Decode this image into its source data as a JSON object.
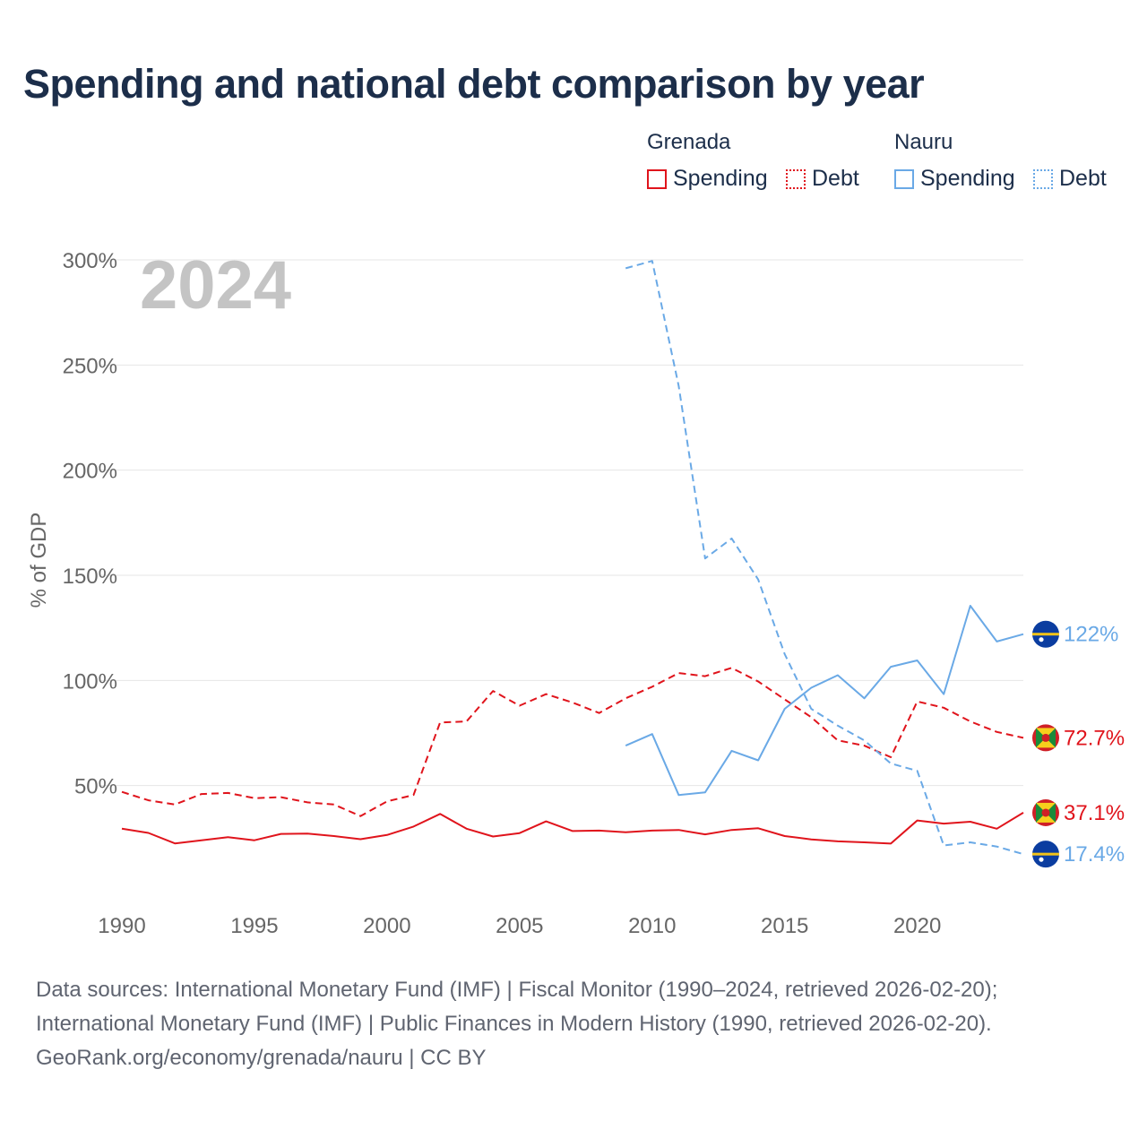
{
  "header": {
    "title": "Spending and national debt comparison by year"
  },
  "legend": {
    "groups": [
      {
        "name": "Grenada",
        "items": [
          "Spending",
          "Debt"
        ]
      },
      {
        "name": "Nauru",
        "items": [
          "Spending",
          "Debt"
        ]
      }
    ]
  },
  "colors": {
    "grenada": "#e0141c",
    "nauru": "#6aa9e6",
    "title": "#1c2e4a",
    "axis_text": "#666666",
    "year_watermark": "#c4c4c4",
    "grid": "#e6e6e6"
  },
  "flags": {
    "grenada": "grenada-flag-icon",
    "nauru": "nauru-flag-icon"
  },
  "chart_data": {
    "type": "line",
    "year_label": "2024",
    "ylabel": "% of GDP",
    "xlim": [
      1990,
      2024
    ],
    "ylim": [
      0,
      300
    ],
    "x_ticks": [
      1990,
      1995,
      2000,
      2005,
      2010,
      2015,
      2020
    ],
    "y_ticks": [
      {
        "value": 50,
        "label": "50%"
      },
      {
        "value": 100,
        "label": "100%"
      },
      {
        "value": 150,
        "label": "150%"
      },
      {
        "value": 200,
        "label": "200%"
      },
      {
        "value": 250,
        "label": "250%"
      },
      {
        "value": 300,
        "label": "300%"
      }
    ],
    "series": [
      {
        "country": "Grenada",
        "measure": "Spending",
        "color_key": "grenada",
        "dashed": false,
        "x": [
          1990,
          1991,
          1992,
          1993,
          1994,
          1995,
          1996,
          1997,
          1998,
          1999,
          2000,
          2001,
          2002,
          2003,
          2004,
          2005,
          2006,
          2007,
          2008,
          2009,
          2010,
          2011,
          2012,
          2013,
          2014,
          2015,
          2016,
          2017,
          2018,
          2019,
          2020,
          2021,
          2022,
          2023,
          2024
        ],
        "values": [
          29.5,
          27.5,
          22.5,
          24,
          25.5,
          24,
          27,
          27.2,
          26,
          24.5,
          26.5,
          30.5,
          36.5,
          29.5,
          25.8,
          27.4,
          33,
          28.4,
          28.6,
          27.8,
          28.6,
          28.9,
          26.8,
          28.9,
          29.7,
          26,
          24.4,
          23.5,
          23,
          22.4,
          33.4,
          31.9,
          32.8,
          29.5,
          37.1
        ],
        "end_label": "37.1%"
      },
      {
        "country": "Grenada",
        "measure": "Debt",
        "color_key": "grenada",
        "dashed": true,
        "x": [
          1990,
          1991,
          1992,
          1993,
          1994,
          1995,
          1996,
          1997,
          1998,
          1999,
          2000,
          2001,
          2002,
          2003,
          2004,
          2005,
          2006,
          2007,
          2008,
          2009,
          2010,
          2011,
          2012,
          2013,
          2014,
          2015,
          2016,
          2017,
          2018,
          2019,
          2020,
          2021,
          2022,
          2023,
          2024
        ],
        "values": [
          47,
          43,
          41,
          46,
          46.5,
          44,
          44.5,
          42,
          41,
          35.5,
          42.5,
          45.5,
          80,
          80.5,
          95,
          88,
          93.5,
          89.5,
          84.5,
          91.5,
          97,
          103.5,
          102,
          106,
          99.5,
          91,
          82.5,
          71.5,
          69,
          63.5,
          90,
          87,
          80.5,
          75.5,
          72.7
        ],
        "end_label": "72.7%"
      },
      {
        "country": "Nauru",
        "measure": "Spending",
        "color_key": "nauru",
        "dashed": false,
        "x": [
          2009,
          2010,
          2011,
          2012,
          2013,
          2014,
          2015,
          2016,
          2017,
          2018,
          2019,
          2020,
          2021,
          2022,
          2023,
          2024
        ],
        "values": [
          69,
          74.5,
          45.5,
          46.8,
          66.5,
          62,
          86.5,
          96.5,
          102.5,
          91.5,
          106.5,
          109.5,
          93.5,
          135.5,
          118.5,
          122
        ],
        "end_label": "122%"
      },
      {
        "country": "Nauru",
        "measure": "Debt",
        "color_key": "nauru",
        "dashed": true,
        "x": [
          2009,
          2010,
          2011,
          2012,
          2013,
          2014,
          2015,
          2016,
          2017,
          2018,
          2019,
          2020,
          2021,
          2022,
          2023,
          2024
        ],
        "values": [
          296,
          299.5,
          240,
          158,
          167.5,
          148,
          112.5,
          86.5,
          78.5,
          71.5,
          60.5,
          57,
          21.5,
          23,
          21,
          17.4
        ],
        "end_label": "17.4%"
      }
    ]
  },
  "footer": {
    "line1": "Data sources: International Monetary Fund (IMF) | Fiscal Monitor (1990–2024, retrieved 2026-02-20);",
    "line2": "International Monetary Fund (IMF) | Public Finances in Modern History (1990, retrieved 2026-02-20).",
    "line3": "GeoRank.org/economy/grenada/nauru | CC BY"
  }
}
